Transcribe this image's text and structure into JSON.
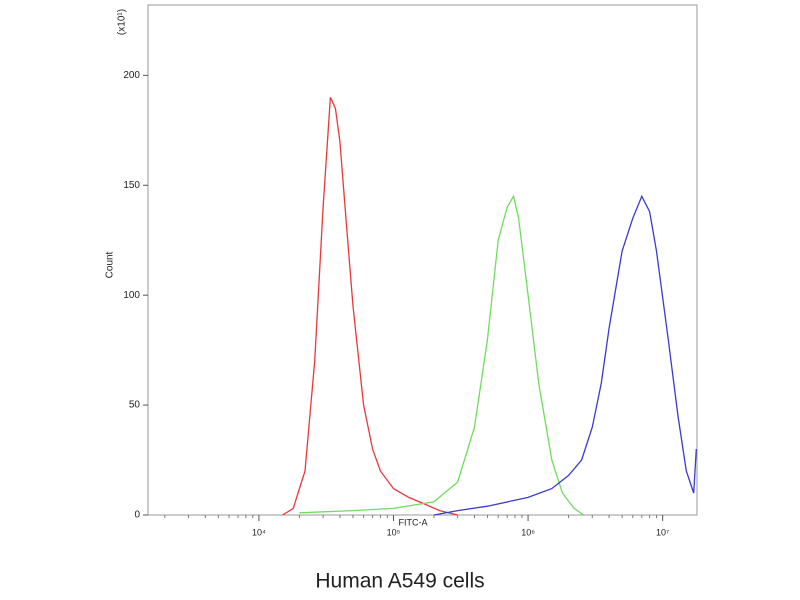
{
  "chart_data": {
    "type": "line",
    "caption": "Human A549 cells",
    "xlabel": "FITC-A",
    "ylabel": "Count",
    "yunit": "(x10¹)",
    "xscale": "log",
    "xlim": [
      1500,
      18000000
    ],
    "ylim": [
      0,
      232
    ],
    "xticks": [
      {
        "value": 10000,
        "label": "10⁴"
      },
      {
        "value": 100000,
        "label": "10⁵"
      },
      {
        "value": 1000000,
        "label": "10⁶"
      },
      {
        "value": 10000000,
        "label": "10⁷"
      }
    ],
    "xminorticks": [
      2000,
      3000,
      4000,
      5000,
      6000,
      7000,
      8000,
      9000,
      20000,
      30000,
      40000,
      50000,
      60000,
      70000,
      80000,
      90000,
      200000,
      300000,
      400000,
      500000,
      600000,
      700000,
      800000,
      900000,
      2000000,
      3000000,
      4000000,
      5000000,
      6000000,
      7000000,
      8000000,
      9000000
    ],
    "yticks": [
      0,
      50,
      100,
      150,
      200
    ],
    "series": [
      {
        "color": "#e8393a",
        "x": [
          15000,
          18000,
          22000,
          26000,
          30000,
          34000,
          37000,
          40000,
          45000,
          50000,
          60000,
          70000,
          80000,
          100000,
          130000,
          170000,
          220000,
          300000
        ],
        "values": [
          0,
          3,
          20,
          70,
          140,
          190,
          185,
          170,
          130,
          95,
          50,
          30,
          20,
          12,
          8,
          5,
          2,
          0
        ]
      },
      {
        "color": "#6fdc5c",
        "x": [
          20000,
          50000,
          100000,
          200000,
          300000,
          400000,
          500000,
          600000,
          700000,
          780000,
          850000,
          1000000,
          1200000,
          1500000,
          1800000,
          2200000,
          2600000
        ],
        "values": [
          1,
          2,
          3,
          6,
          15,
          40,
          80,
          125,
          140,
          145,
          135,
          100,
          60,
          25,
          10,
          3,
          0
        ]
      },
      {
        "color": "#3a3ad0",
        "x": [
          200000,
          300000,
          500000,
          1000000,
          1500000,
          2000000,
          2500000,
          3000000,
          3500000,
          4000000,
          5000000,
          6000000,
          7000000,
          8000000,
          9000000,
          11000000,
          13000000,
          15000000,
          17000000,
          17800000
        ],
        "values": [
          0,
          2,
          4,
          8,
          12,
          18,
          25,
          40,
          60,
          85,
          120,
          135,
          145,
          138,
          120,
          80,
          45,
          20,
          10,
          30
        ]
      }
    ]
  }
}
